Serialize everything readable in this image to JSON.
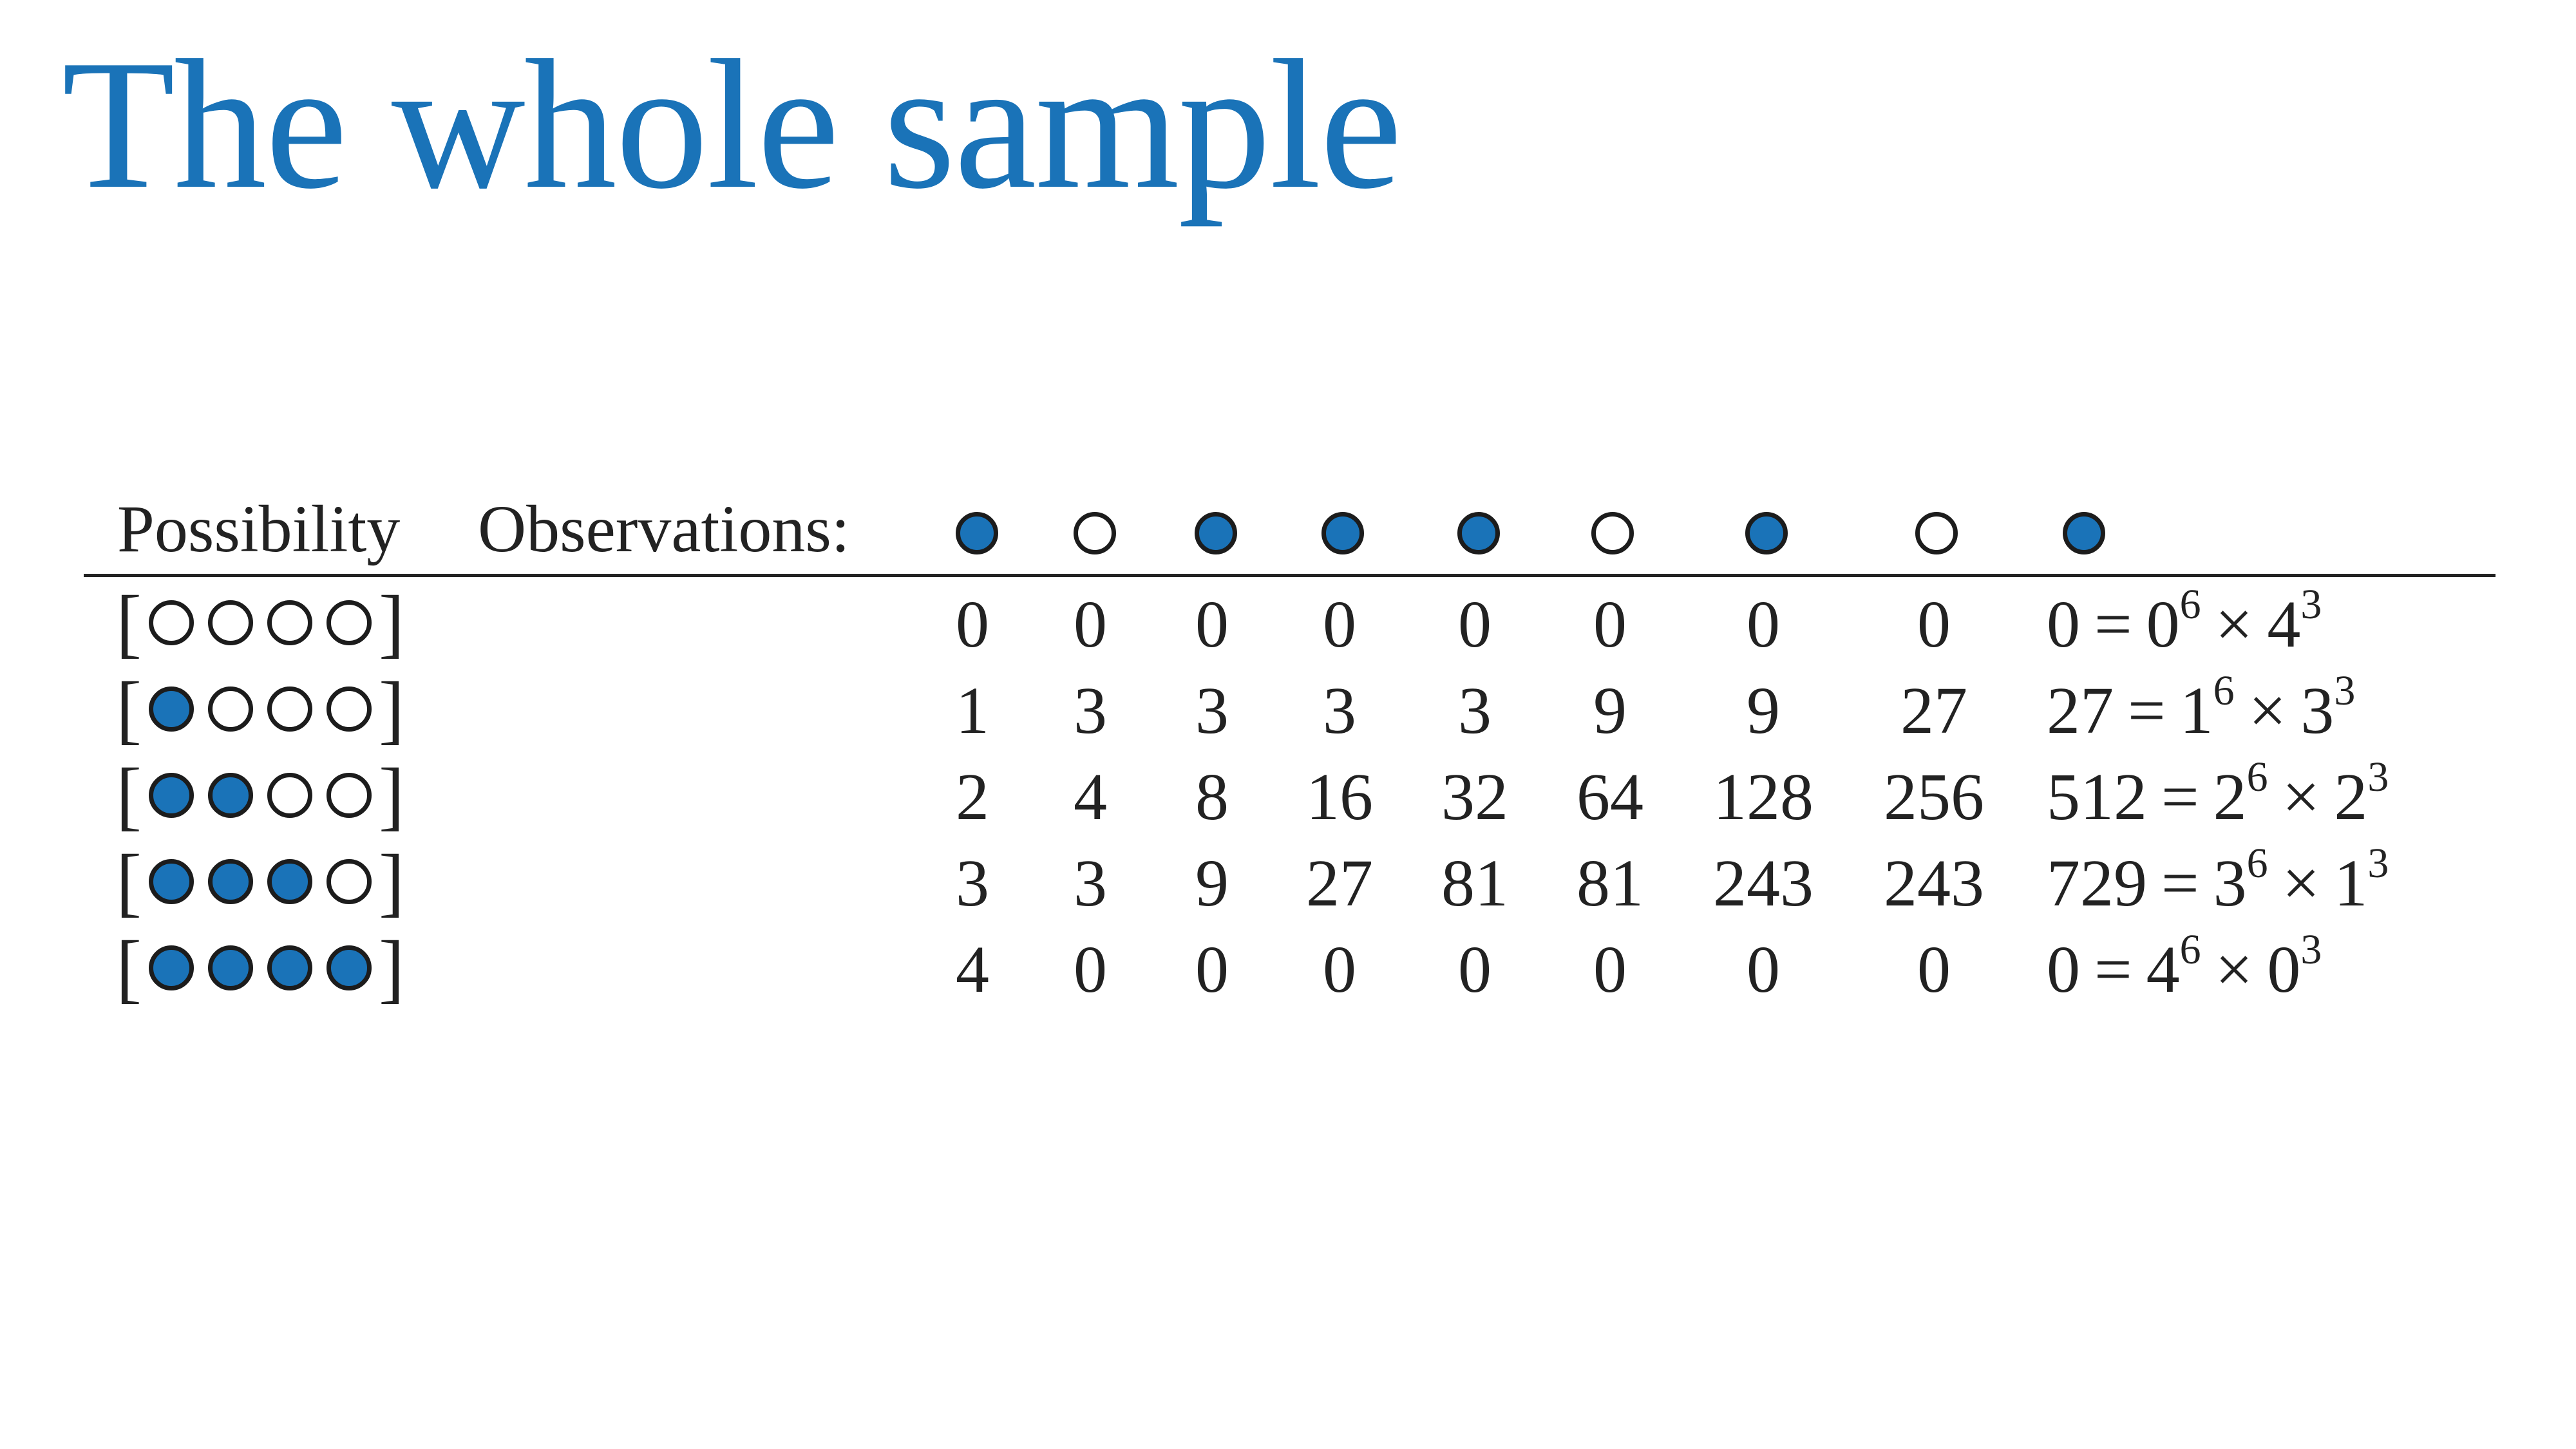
{
  "title": "The whole sample",
  "table": {
    "possibility_header": "Possibility",
    "observations_header": "Observations:",
    "observations": [
      "blue",
      "white",
      "blue",
      "blue",
      "blue",
      "white",
      "blue",
      "white",
      "blue"
    ],
    "rows": [
      {
        "marbles": [
          "white",
          "white",
          "white",
          "white"
        ],
        "counts": [
          "0",
          "0",
          "0",
          "0",
          "0",
          "0",
          "0",
          "0"
        ],
        "product": {
          "total": "0",
          "eq": "=",
          "base1": "0",
          "exp1": "6",
          "times": "×",
          "base2": "4",
          "exp2": "3"
        }
      },
      {
        "marbles": [
          "blue",
          "white",
          "white",
          "white"
        ],
        "counts": [
          "1",
          "3",
          "3",
          "3",
          "3",
          "9",
          "9",
          "27"
        ],
        "product": {
          "total": "27",
          "eq": "=",
          "base1": "1",
          "exp1": "6",
          "times": "×",
          "base2": "3",
          "exp2": "3"
        }
      },
      {
        "marbles": [
          "blue",
          "blue",
          "white",
          "white"
        ],
        "counts": [
          "2",
          "4",
          "8",
          "16",
          "32",
          "64",
          "128",
          "256"
        ],
        "product": {
          "total": "512",
          "eq": "=",
          "base1": "2",
          "exp1": "6",
          "times": "×",
          "base2": "2",
          "exp2": "3"
        }
      },
      {
        "marbles": [
          "blue",
          "blue",
          "blue",
          "white"
        ],
        "counts": [
          "3",
          "3",
          "9",
          "27",
          "81",
          "81",
          "243",
          "243"
        ],
        "product": {
          "total": "729",
          "eq": "=",
          "base1": "3",
          "exp1": "6",
          "times": "×",
          "base2": "1",
          "exp2": "3"
        }
      },
      {
        "marbles": [
          "blue",
          "blue",
          "blue",
          "blue"
        ],
        "counts": [
          "4",
          "0",
          "0",
          "0",
          "0",
          "0",
          "0",
          "0"
        ],
        "product": {
          "total": "0",
          "eq": "=",
          "base1": "4",
          "exp1": "6",
          "times": "×",
          "base2": "0",
          "exp2": "3"
        }
      }
    ]
  },
  "colors": {
    "title": "#1a73b8",
    "blue_marble": "#1a73b8",
    "white_marble": "#ffffff",
    "text": "#222222"
  }
}
